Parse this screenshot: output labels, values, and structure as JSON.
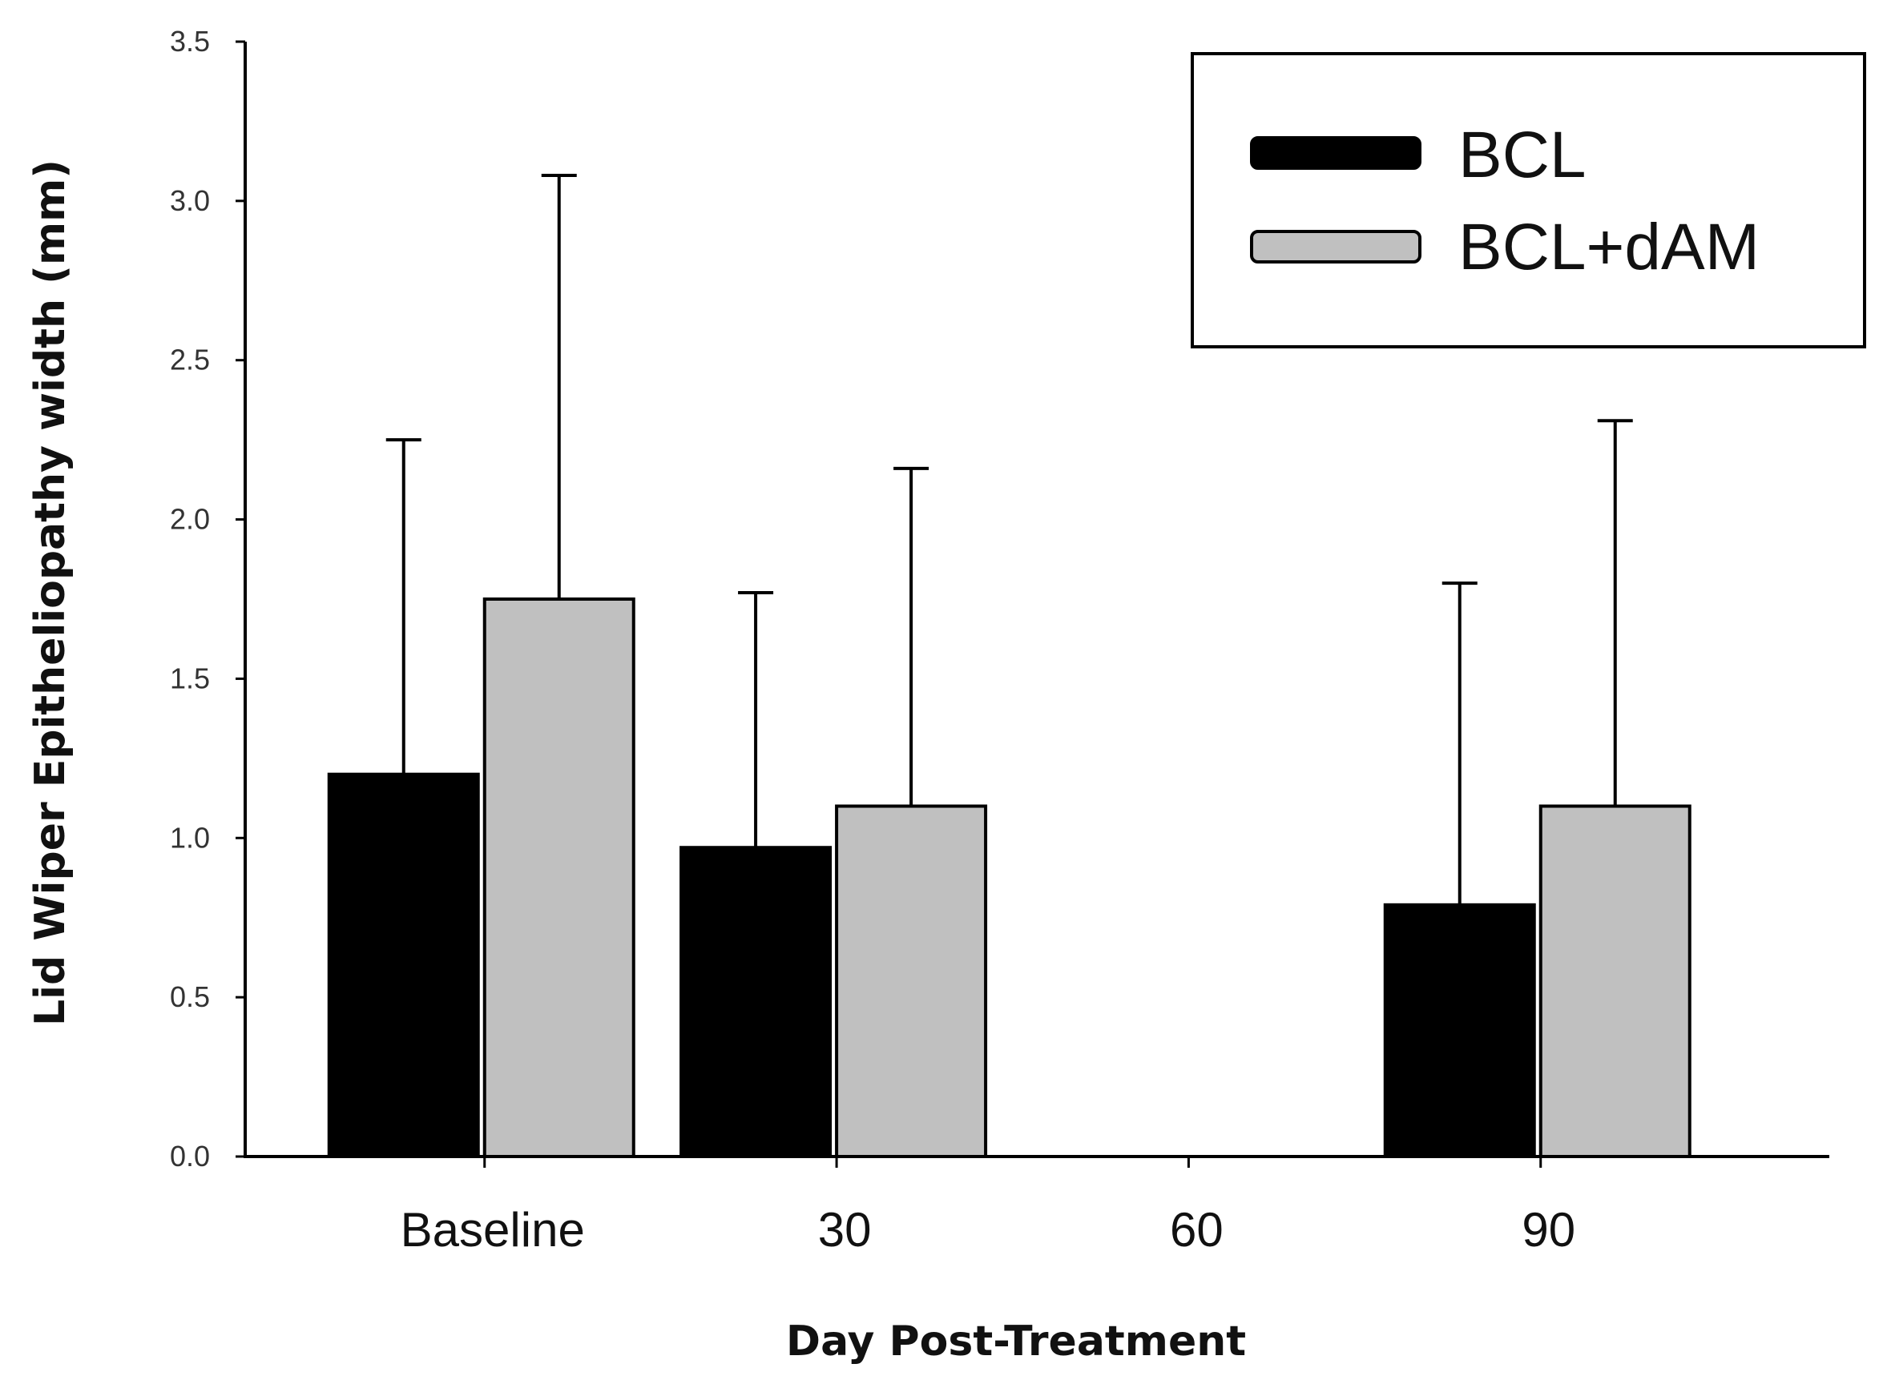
{
  "chart_data": {
    "type": "bar",
    "title": "",
    "xlabel": "Day Post-Treatment",
    "ylabel": "Lid Wiper Epitheliopathy width (mm)",
    "ylim": [
      0,
      3.5
    ],
    "yticks": [
      "0.0",
      "0.5",
      "1.0",
      "1.5",
      "2.0",
      "2.5",
      "3.0",
      "3.5"
    ],
    "categories": [
      "Baseline",
      "30",
      "60",
      "90"
    ],
    "series": [
      {
        "name": "BCL",
        "color": "#000000",
        "values": [
          1.2,
          0.97,
          null,
          0.79
        ],
        "error_upper": [
          2.25,
          1.77,
          null,
          1.8
        ]
      },
      {
        "name": "BCL+dAM",
        "color": "#c0c0c0",
        "values": [
          1.75,
          1.1,
          null,
          1.1
        ],
        "error_upper": [
          3.08,
          2.16,
          null,
          2.31
        ]
      }
    ],
    "legend_position": "top-right",
    "grid": false
  }
}
